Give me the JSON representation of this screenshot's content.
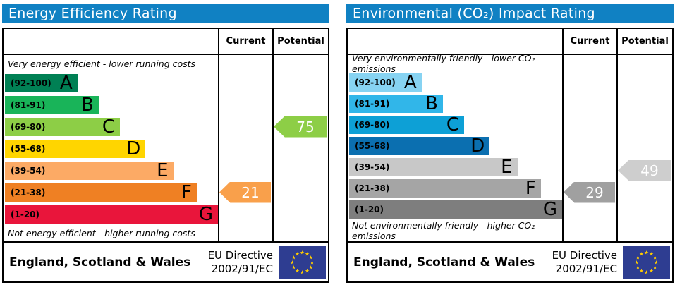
{
  "theme": {
    "header_blue": "#1081c3",
    "border_black": "#000000",
    "eu_flag_blue": "#2e3d91",
    "eu_star_yellow": "#ffcc00"
  },
  "left_chart": {
    "title": "Energy Efficiency Rating",
    "columns": {
      "current": "Current",
      "potential": "Potential"
    },
    "top_caption": "Very energy efficient - lower running costs",
    "bottom_caption": "Not energy efficient - higher running costs",
    "bands": [
      {
        "label": "A",
        "range": "(92-100)",
        "color": "#008054",
        "width_pct": 34
      },
      {
        "label": "B",
        "range": "(81-91)",
        "color": "#19b459",
        "width_pct": 44
      },
      {
        "label": "C",
        "range": "(69-80)",
        "color": "#8dce46",
        "width_pct": 54
      },
      {
        "label": "D",
        "range": "(55-68)",
        "color": "#ffd500",
        "width_pct": 66
      },
      {
        "label": "E",
        "range": "(39-54)",
        "color": "#fcaa65",
        "width_pct": 79
      },
      {
        "label": "F",
        "range": "(21-38)",
        "color": "#ef8023",
        "width_pct": 90
      },
      {
        "label": "G",
        "range": "(1-20)",
        "color": "#e9153b",
        "width_pct": 100
      }
    ],
    "current": {
      "value": "21",
      "band_index": 5,
      "color": "#f9a04b"
    },
    "potential": {
      "value": "75",
      "band_index": 2,
      "color": "#8dce46"
    },
    "footer": {
      "region": "England, Scotland & Wales",
      "directive_line1": "EU Directive",
      "directive_line2": "2002/91/EC"
    }
  },
  "right_chart": {
    "title": "Environmental (CO₂) Impact Rating",
    "columns": {
      "current": "Current",
      "potential": "Potential"
    },
    "top_caption": "Very environmentally friendly - lower CO₂ emissions",
    "bottom_caption": "Not environmentally friendly - higher CO₂ emissions",
    "bands": [
      {
        "label": "A",
        "range": "(92-100)",
        "color": "#87d3f2",
        "width_pct": 34
      },
      {
        "label": "B",
        "range": "(81-91)",
        "color": "#31b6e9",
        "width_pct": 44
      },
      {
        "label": "C",
        "range": "(69-80)",
        "color": "#0da0d6",
        "width_pct": 54
      },
      {
        "label": "D",
        "range": "(55-68)",
        "color": "#0b6fb0",
        "width_pct": 66
      },
      {
        "label": "E",
        "range": "(39-54)",
        "color": "#c8c8c8",
        "width_pct": 79
      },
      {
        "label": "F",
        "range": "(21-38)",
        "color": "#a5a5a5",
        "width_pct": 90
      },
      {
        "label": "G",
        "range": "(1-20)",
        "color": "#7e7e7e",
        "width_pct": 100
      }
    ],
    "current": {
      "value": "29",
      "band_index": 5,
      "color": "#a0a0a0"
    },
    "potential": {
      "value": "49",
      "band_index": 4,
      "color": "#cecece"
    },
    "footer": {
      "region": "England, Scotland & Wales",
      "directive_line1": "EU Directive",
      "directive_line2": "2002/91/EC"
    }
  },
  "chart_data": [
    {
      "type": "bar",
      "title": "Energy Efficiency Rating",
      "categories": [
        "A",
        "B",
        "C",
        "D",
        "E",
        "F",
        "G"
      ],
      "band_ranges": [
        "92-100",
        "81-91",
        "69-80",
        "55-68",
        "39-54",
        "21-38",
        "1-20"
      ],
      "current": 21,
      "current_band": "F",
      "potential": 75,
      "potential_band": "C",
      "xlim": [
        1,
        100
      ],
      "top_note": "Very energy efficient - lower running costs",
      "bottom_note": "Not energy efficient - higher running costs"
    },
    {
      "type": "bar",
      "title": "Environmental (CO₂) Impact Rating",
      "categories": [
        "A",
        "B",
        "C",
        "D",
        "E",
        "F",
        "G"
      ],
      "band_ranges": [
        "92-100",
        "81-91",
        "69-80",
        "55-68",
        "39-54",
        "21-38",
        "1-20"
      ],
      "current": 29,
      "current_band": "F",
      "potential": 49,
      "potential_band": "E",
      "xlim": [
        1,
        100
      ],
      "top_note": "Very environmentally friendly - lower CO₂ emissions",
      "bottom_note": "Not environmentally friendly - higher CO₂ emissions"
    }
  ]
}
